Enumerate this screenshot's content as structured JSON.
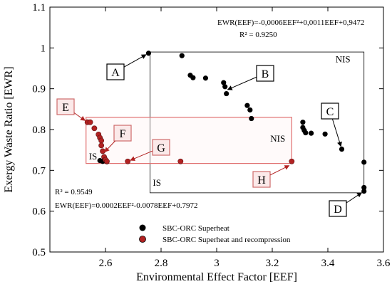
{
  "chart_data": {
    "type": "scatter",
    "xlabel": "Environmental Effect Factor [EEF]",
    "ylabel": "Exergy Waste Ratio [EWR]",
    "xlim": [
      2.4,
      3.6
    ],
    "ylim": [
      0.5,
      1.1
    ],
    "x_ticks": [
      "2.6",
      "2.8",
      "3",
      "3.2",
      "3.4",
      "3.6"
    ],
    "y_ticks": [
      "0.5",
      "0.6",
      "0.7",
      "0.8",
      "0.9",
      "1",
      "1.1"
    ],
    "grid": false,
    "legend_position": "bottom-left",
    "series": [
      {
        "name": "SBC-ORC Superheat",
        "color": "#000000",
        "points": [
          [
            2.755,
            0.987
          ],
          [
            2.875,
            0.981
          ],
          [
            2.905,
            0.933
          ],
          [
            2.915,
            0.927
          ],
          [
            2.96,
            0.926
          ],
          [
            3.025,
            0.915
          ],
          [
            3.03,
            0.905
          ],
          [
            3.035,
            0.888
          ],
          [
            3.11,
            0.859
          ],
          [
            3.12,
            0.848
          ],
          [
            3.125,
            0.827
          ],
          [
            3.31,
            0.818
          ],
          [
            3.31,
            0.805
          ],
          [
            3.315,
            0.798
          ],
          [
            3.32,
            0.792
          ],
          [
            3.34,
            0.791
          ],
          [
            3.39,
            0.789
          ],
          [
            3.45,
            0.752
          ],
          [
            3.53,
            0.72
          ],
          [
            3.53,
            0.658
          ],
          [
            3.53,
            0.649
          ],
          [
            2.58,
            0.724
          ],
          [
            2.59,
            0.722
          ],
          [
            2.605,
            0.721
          ]
        ]
      },
      {
        "name": "SBC-ORC Superheat and recompression",
        "color": "#b22222",
        "points": [
          [
            2.535,
            0.818
          ],
          [
            2.545,
            0.818
          ],
          [
            2.56,
            0.803
          ],
          [
            2.575,
            0.788
          ],
          [
            2.58,
            0.78
          ],
          [
            2.585,
            0.773
          ],
          [
            2.585,
            0.761
          ],
          [
            2.59,
            0.747
          ],
          [
            2.595,
            0.733
          ],
          [
            2.6,
            0.726
          ],
          [
            2.605,
            0.722
          ],
          [
            2.68,
            0.722
          ],
          [
            2.87,
            0.722
          ],
          [
            3.27,
            0.722
          ]
        ]
      }
    ],
    "annotations": {
      "eq_upper": "EWR(EEF)=-0,0006EEF²+0,0011EEF+0,9472",
      "r2_upper": "R² = 0.9250",
      "eq_lower": "EWR(EEF)=0.0002EEF²-0.0078EEF+0.7972",
      "r2_lower": "R² = 0.9549",
      "regions": [
        {
          "name": "NIS",
          "label": "NIS",
          "x_range": [
            2.76,
            3.53
          ],
          "y_range": [
            0.645,
            0.99
          ]
        },
        {
          "name": "IS",
          "label": "IS",
          "x_range": [
            2.53,
            3.27
          ],
          "y_range": [
            0.717,
            0.83
          ]
        }
      ],
      "callouts": [
        {
          "label": "A",
          "target": [
            2.755,
            0.987
          ]
        },
        {
          "label": "B",
          "target": [
            3.03,
            0.895
          ]
        },
        {
          "label": "C",
          "target": [
            3.45,
            0.752
          ]
        },
        {
          "label": "D",
          "target": [
            3.53,
            0.649
          ]
        },
        {
          "label": "E",
          "target": [
            2.535,
            0.818
          ]
        },
        {
          "label": "F",
          "target": [
            2.59,
            0.74
          ]
        },
        {
          "label": "G",
          "target": [
            2.68,
            0.722
          ]
        },
        {
          "label": "H",
          "target": [
            3.27,
            0.715
          ]
        }
      ]
    }
  }
}
